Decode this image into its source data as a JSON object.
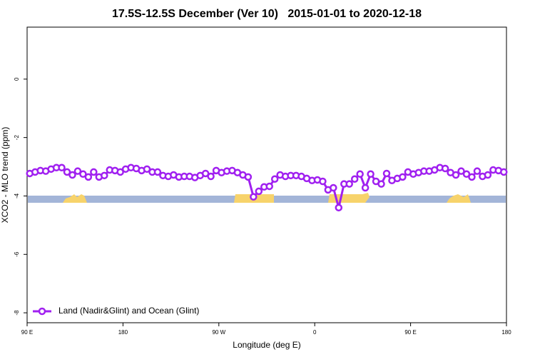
{
  "chart_data": {
    "type": "line",
    "title": "17.5S-12.5S December (Ver 10)   2015-01-01 to 2020-12-18",
    "x_label": "Longitude (deg E)",
    "y_label": "XCO2 - MLO trend (ppm)",
    "xlim": [
      90,
      540
    ],
    "xticks": [
      {
        "value": 90,
        "label": "90 E"
      },
      180,
      {
        "value": 270,
        "label": "90 W"
      },
      {
        "value": 360,
        "label": "0"
      },
      {
        "value": 450,
        "label": "90 E"
      },
      {
        "value": 540,
        "label": "180"
      }
    ],
    "ylim": [
      -8.34,
      1.78
    ],
    "yticks": [
      -8,
      -6,
      -4,
      -2,
      0
    ],
    "legend": "bottom-left",
    "x": [
      92.5,
      97.5,
      102.5,
      107.5,
      112.5,
      117.5,
      122.5,
      127.5,
      132.5,
      137.5,
      142.5,
      147.5,
      152.5,
      157.5,
      162.5,
      167.5,
      172.5,
      177.5,
      182.5,
      187.5,
      192.5,
      197.5,
      202.5,
      207.5,
      212.5,
      217.5,
      222.5,
      227.5,
      232.5,
      237.5,
      242.5,
      247.5,
      252.5,
      257.5,
      262.5,
      267.5,
      272.5,
      277.5,
      282.5,
      287.5,
      292.5,
      297.5,
      302.5,
      307.5,
      312.5,
      317.5,
      322.5,
      327.5,
      332.5,
      337.5,
      342.5,
      347.5,
      352.5,
      357.5,
      362.5,
      367.5,
      372.5,
      377.5,
      382.5,
      387.5,
      392.5,
      397.5,
      402.5,
      407.5,
      412.5,
      417.5,
      422.5,
      427.5,
      432.5,
      437.5,
      442.5,
      447.5,
      452.5,
      457.5,
      462.5,
      467.5,
      472.5,
      477.5,
      482.5,
      487.5,
      492.5,
      497.5,
      502.5,
      507.5,
      512.5,
      517.5,
      522.5,
      527.5,
      532.5,
      537.5
    ],
    "series": [
      {
        "name": "Land (Nadir&Glint) and Ocean (Glint)",
        "color": "#a020f0",
        "values": [
          -3.23,
          -3.18,
          -3.13,
          -3.15,
          -3.08,
          -3.03,
          -3.03,
          -3.18,
          -3.28,
          -3.15,
          -3.25,
          -3.35,
          -3.18,
          -3.35,
          -3.3,
          -3.11,
          -3.13,
          -3.18,
          -3.08,
          -3.03,
          -3.06,
          -3.13,
          -3.08,
          -3.18,
          -3.18,
          -3.3,
          -3.33,
          -3.28,
          -3.35,
          -3.33,
          -3.33,
          -3.37,
          -3.3,
          -3.23,
          -3.33,
          -3.13,
          -3.2,
          -3.15,
          -3.13,
          -3.2,
          -3.28,
          -3.35,
          -4.03,
          -3.84,
          -3.69,
          -3.67,
          -3.42,
          -3.28,
          -3.33,
          -3.3,
          -3.3,
          -3.33,
          -3.4,
          -3.47,
          -3.45,
          -3.5,
          -3.79,
          -3.72,
          -4.4,
          -3.59,
          -3.59,
          -3.42,
          -3.25,
          -3.72,
          -3.25,
          -3.5,
          -3.59,
          -3.23,
          -3.47,
          -3.4,
          -3.35,
          -3.18,
          -3.25,
          -3.2,
          -3.15,
          -3.15,
          -3.11,
          -3.03,
          -3.06,
          -3.2,
          -3.28,
          -3.15,
          -3.25,
          -3.35,
          -3.15,
          -3.33,
          -3.28,
          -3.11,
          -3.13,
          -3.18
        ]
      }
    ]
  }
}
